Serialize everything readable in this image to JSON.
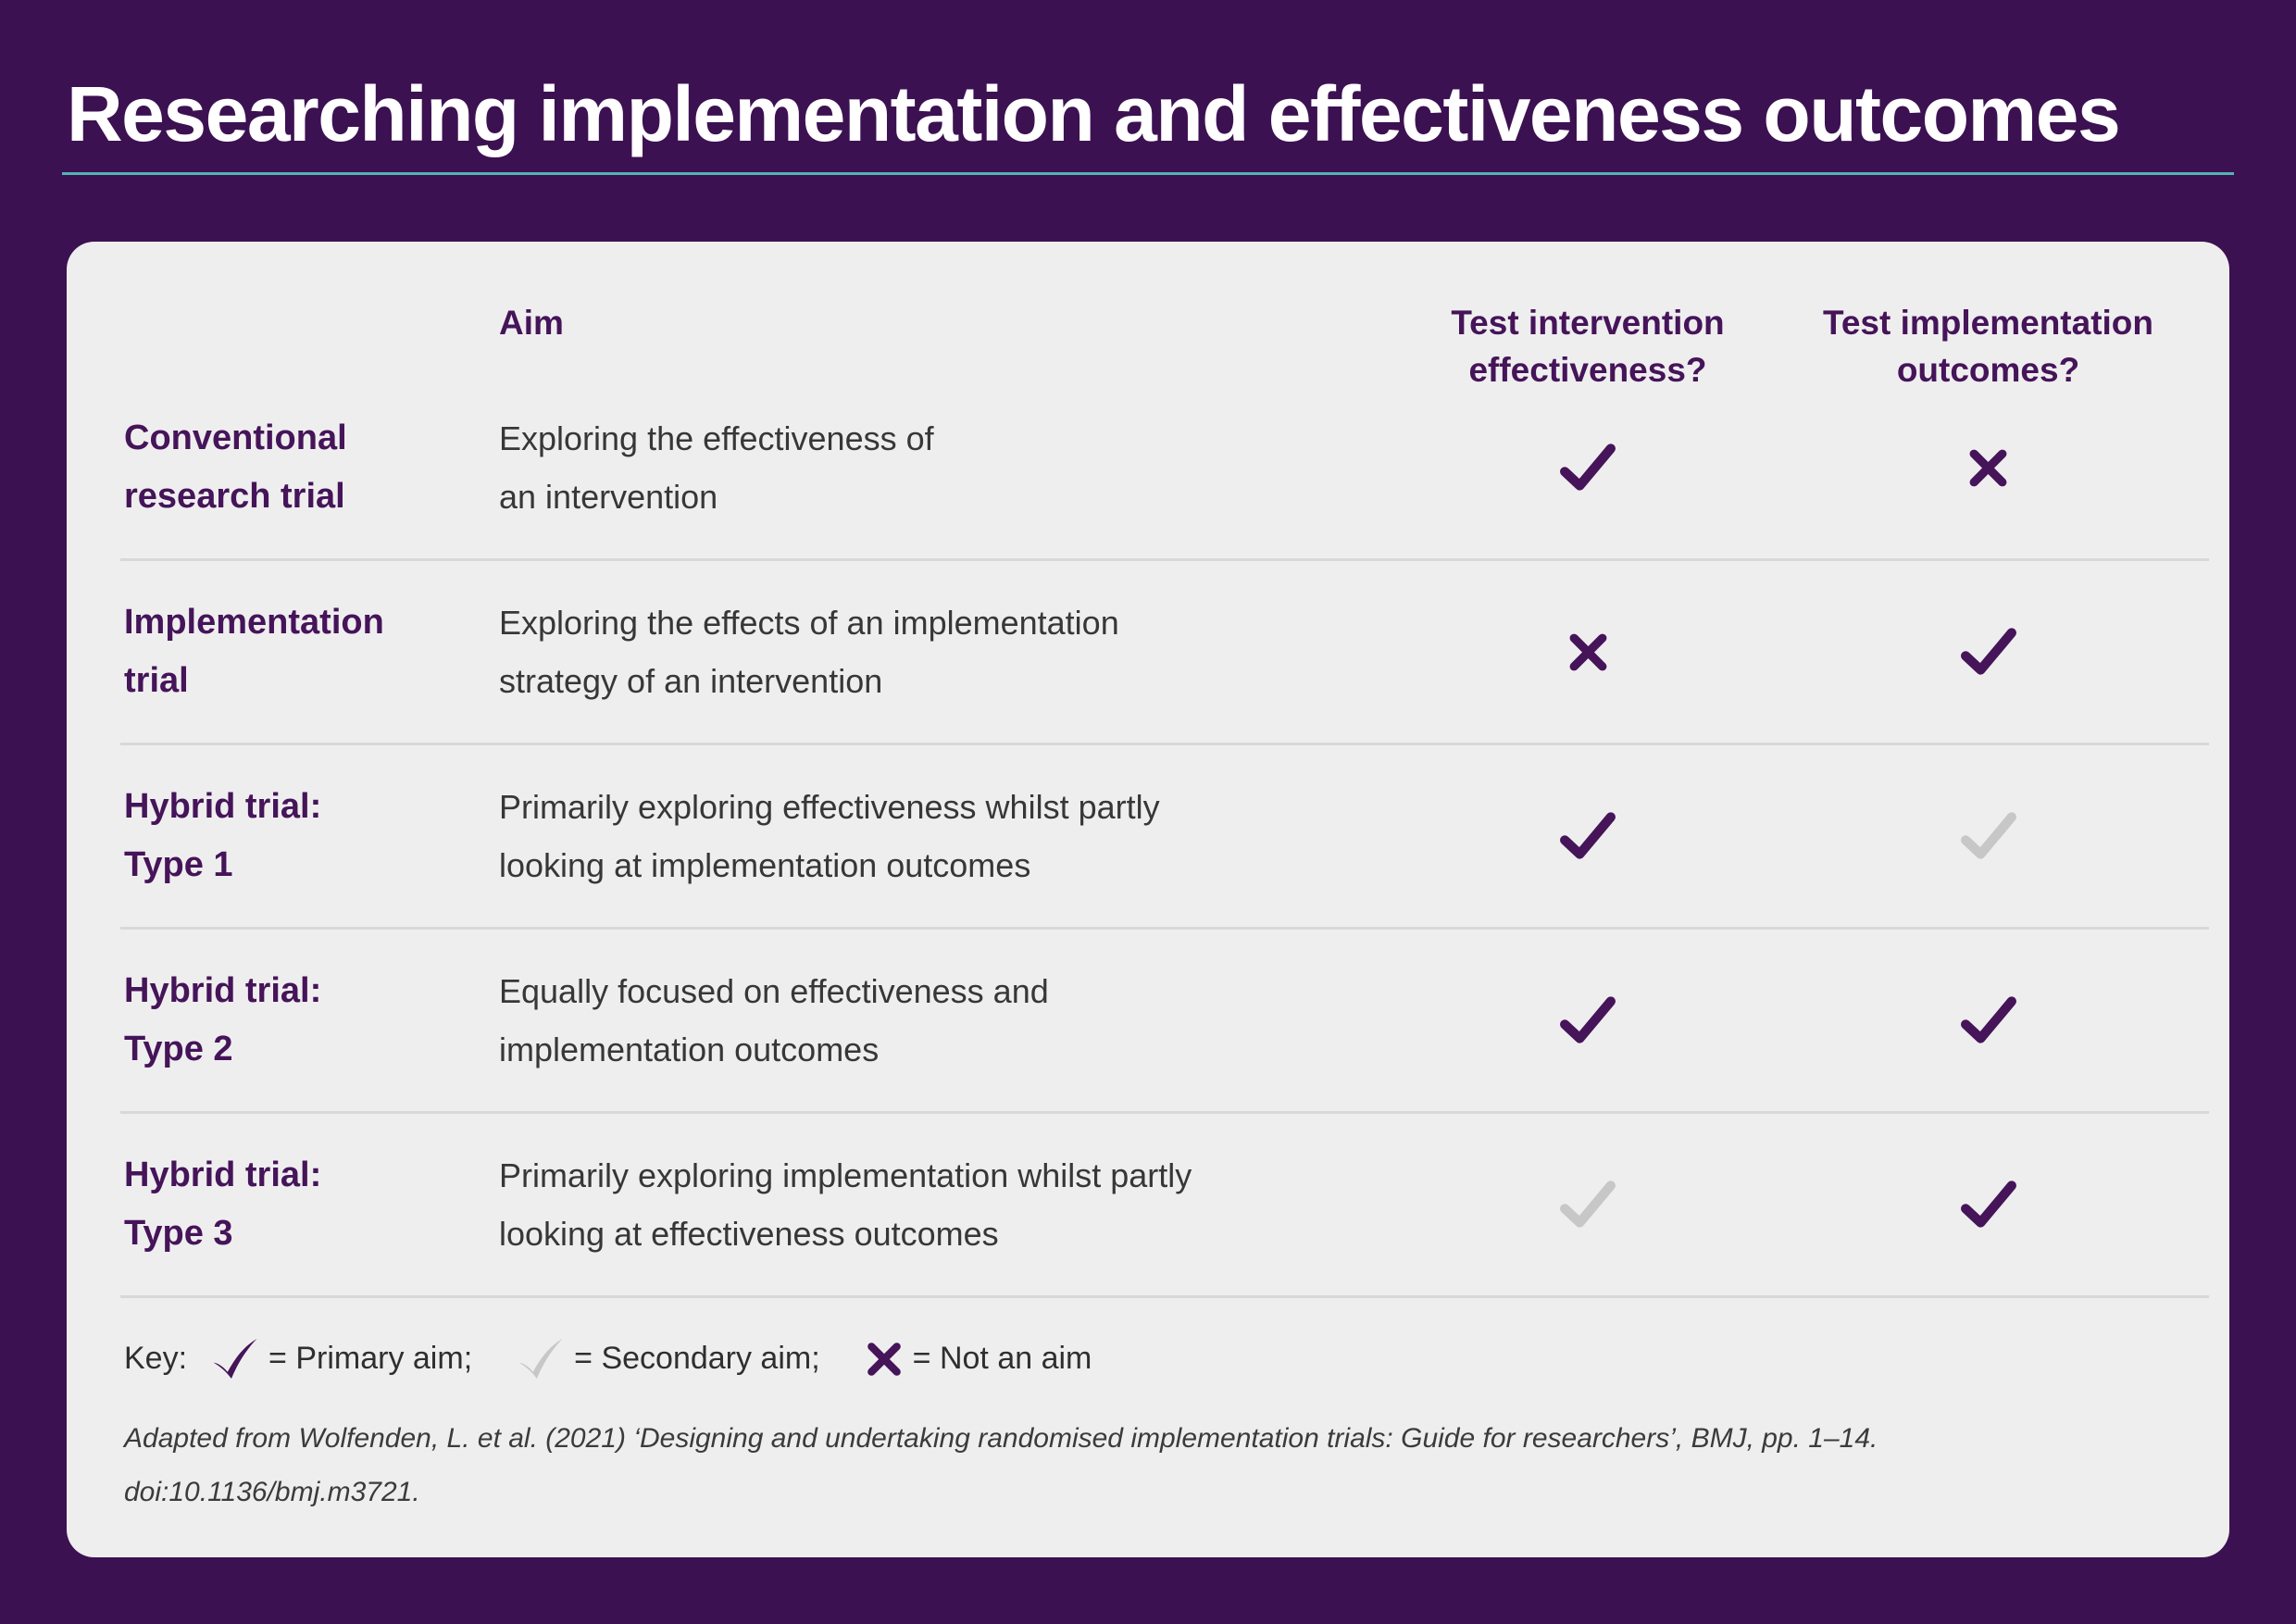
{
  "title": "Researching implementation and effectiveness outcomes",
  "colors": {
    "background_purple": "#3c1151",
    "accent_teal": "#52b5af",
    "card_gray": "#efeeef",
    "deep_purple": "#451459",
    "secondary_gray": "#c7c7c7",
    "body_text": "#373737"
  },
  "table": {
    "headers": {
      "aim": "Aim",
      "effectiveness_lines": [
        "Test intervention",
        "effectiveness?"
      ],
      "implementation_lines": [
        "Test implementation",
        "outcomes?"
      ]
    },
    "rows": [
      {
        "name_lines": [
          "Conventional",
          "research trial"
        ],
        "aim_lines": [
          "Exploring the effectiveness of",
          "an intervention"
        ],
        "effectiveness": "primary-aim",
        "implementation": "not-an-aim"
      },
      {
        "name_lines": [
          "Implementation",
          "trial"
        ],
        "aim_lines": [
          "Exploring the effects of an implementation",
          "strategy of an intervention"
        ],
        "effectiveness": "not-an-aim",
        "implementation": "primary-aim"
      },
      {
        "name_lines": [
          "Hybrid trial:",
          "Type 1"
        ],
        "aim_lines": [
          "Primarily exploring effectiveness whilst partly",
          "looking at implementation outcomes"
        ],
        "effectiveness": "primary-aim",
        "implementation": "secondary-aim"
      },
      {
        "name_lines": [
          "Hybrid trial:",
          "Type 2"
        ],
        "aim_lines": [
          "Equally focused on effectiveness and",
          "implementation outcomes"
        ],
        "effectiveness": "primary-aim",
        "implementation": "primary-aim"
      },
      {
        "name_lines": [
          "Hybrid trial:",
          "Type 3"
        ],
        "aim_lines": [
          "Primarily exploring implementation whilst partly",
          "looking at effectiveness outcomes"
        ],
        "effectiveness": "secondary-aim",
        "implementation": "primary-aim"
      }
    ]
  },
  "key": {
    "label": "Key:",
    "items": [
      {
        "icon": "primary-check-icon",
        "text": "= Primary aim;"
      },
      {
        "icon": "secondary-check-icon",
        "text": "= Secondary aim;"
      },
      {
        "icon": "cross-icon",
        "text": "= Not an aim"
      }
    ]
  },
  "citation_lines": [
    "Adapted from Wolfenden, L. et al. (2021) ‘Designing and undertaking randomised implementation trials: Guide for researchers’, BMJ, pp. 1–14.",
    "doi:10.1136/bmj.m3721."
  ]
}
